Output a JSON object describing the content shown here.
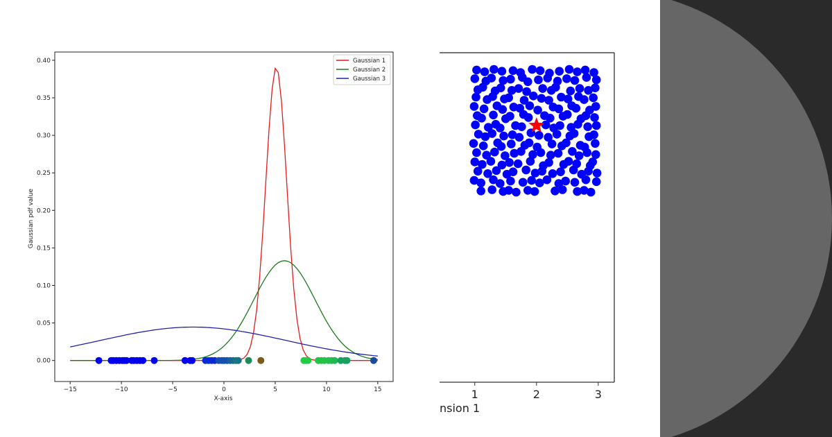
{
  "colors": {
    "background_dark": "#2a2a2a",
    "circle_gray": "#666666"
  },
  "chart_data": [
    {
      "type": "line",
      "xlabel": "X-axis",
      "ylabel": "Gaussian pdf value",
      "xlim": [
        -16.5,
        16.5
      ],
      "ylim": [
        -0.028,
        0.411
      ],
      "x_ticks": [
        "−15",
        "−10",
        "−5",
        "0",
        "5",
        "10",
        "15"
      ],
      "x_tick_values": [
        -15,
        -10,
        -5,
        0,
        5,
        10,
        15
      ],
      "y_ticks": [
        "0.00",
        "0.05",
        "0.10",
        "0.15",
        "0.20",
        "0.25",
        "0.30",
        "0.35",
        "0.40"
      ],
      "y_tick_values": [
        0,
        0.05,
        0.1,
        0.15,
        0.2,
        0.25,
        0.3,
        0.35,
        0.4
      ],
      "x_domain": [
        -15,
        15
      ],
      "samples": 100,
      "legend_position": "top-right",
      "grid": false,
      "series": [
        {
          "name": "Gaussian 1",
          "color": "#e41a1c",
          "mean": 5.1,
          "std": 1.02
        },
        {
          "name": "Gaussian 2",
          "color": "#1a7a1a",
          "mean": 5.9,
          "std": 3.0
        },
        {
          "name": "Gaussian 3",
          "color": "#2020b0",
          "mean": -3.0,
          "std": 8.96
        }
      ],
      "points": [
        {
          "x": -12.2,
          "color": "#0000ee"
        },
        {
          "x": -11.0,
          "color": "#0000ee"
        },
        {
          "x": -10.8,
          "color": "#0000ee"
        },
        {
          "x": -10.5,
          "color": "#0000ee"
        },
        {
          "x": -10.2,
          "color": "#0000ee"
        },
        {
          "x": -9.9,
          "color": "#0000ee"
        },
        {
          "x": -9.7,
          "color": "#0000ee"
        },
        {
          "x": -9.5,
          "color": "#0000ee"
        },
        {
          "x": -9.0,
          "color": "#0000ee"
        },
        {
          "x": -8.8,
          "color": "#0000ee"
        },
        {
          "x": -8.5,
          "color": "#0000ee"
        },
        {
          "x": -8.2,
          "color": "#0000ee"
        },
        {
          "x": -7.9,
          "color": "#0000ee"
        },
        {
          "x": -6.8,
          "color": "#0000ee"
        },
        {
          "x": -3.8,
          "color": "#0000ee"
        },
        {
          "x": -3.3,
          "color": "#0000ee"
        },
        {
          "x": -3.1,
          "color": "#0000ee"
        },
        {
          "x": -1.8,
          "color": "#0a2ad8"
        },
        {
          "x": -1.5,
          "color": "#0a2ad8"
        },
        {
          "x": -1.2,
          "color": "#0a2ad8"
        },
        {
          "x": -0.9,
          "color": "#0a2ad8"
        },
        {
          "x": -0.5,
          "color": "#1450b0"
        },
        {
          "x": -0.2,
          "color": "#1450b0"
        },
        {
          "x": 0.0,
          "color": "#1450b0"
        },
        {
          "x": 0.3,
          "color": "#1450b0"
        },
        {
          "x": 0.6,
          "color": "#1460a0"
        },
        {
          "x": 0.9,
          "color": "#156a90"
        },
        {
          "x": 1.2,
          "color": "#167585"
        },
        {
          "x": 1.4,
          "color": "#167585"
        },
        {
          "x": 2.4,
          "color": "#1e8c5a"
        },
        {
          "x": 3.6,
          "color": "#7b5a1e"
        },
        {
          "x": 7.8,
          "color": "#22cc44"
        },
        {
          "x": 8.0,
          "color": "#22cc44"
        },
        {
          "x": 8.2,
          "color": "#22cc44"
        },
        {
          "x": 9.2,
          "color": "#22c448"
        },
        {
          "x": 9.5,
          "color": "#22c448"
        },
        {
          "x": 9.8,
          "color": "#22c448"
        },
        {
          "x": 10.2,
          "color": "#22c04c"
        },
        {
          "x": 10.5,
          "color": "#22c04c"
        },
        {
          "x": 10.8,
          "color": "#22b850"
        },
        {
          "x": 11.4,
          "color": "#18a060"
        },
        {
          "x": 11.8,
          "color": "#18a060"
        },
        {
          "x": 12.0,
          "color": "#18a060"
        },
        {
          "x": 14.6,
          "color": "#1a4a9a"
        }
      ]
    },
    {
      "type": "scatter",
      "xlabel_visible": "nsion 1",
      "xlim": [
        0.43,
        3.26
      ],
      "ylim": [
        -2.1,
        3.24
      ],
      "x_ticks": [
        "1",
        "2",
        "3"
      ],
      "x_tick_values": [
        1,
        2,
        3
      ],
      "point_color": "#0000ff",
      "marker": {
        "label": "star",
        "color": "#ff0000",
        "x": 2.0,
        "y": 2.06
      },
      "points": [
        [
          1.03,
          2.96
        ],
        [
          1.16,
          2.93
        ],
        [
          1.31,
          2.97
        ],
        [
          1.44,
          2.94
        ],
        [
          1.62,
          2.95
        ],
        [
          1.74,
          2.92
        ],
        [
          1.93,
          2.97
        ],
        [
          2.06,
          2.95
        ],
        [
          2.21,
          2.91
        ],
        [
          2.37,
          2.94
        ],
        [
          2.53,
          2.97
        ],
        [
          2.66,
          2.93
        ],
        [
          2.79,
          2.96
        ],
        [
          2.93,
          2.92
        ],
        [
          1.0,
          2.82
        ],
        [
          1.18,
          2.78
        ],
        [
          1.27,
          2.83
        ],
        [
          1.46,
          2.79
        ],
        [
          1.58,
          2.81
        ],
        [
          1.77,
          2.84
        ],
        [
          1.86,
          2.77
        ],
        [
          2.03,
          2.8
        ],
        [
          2.18,
          2.83
        ],
        [
          2.34,
          2.78
        ],
        [
          2.49,
          2.82
        ],
        [
          2.62,
          2.79
        ],
        [
          2.81,
          2.84
        ],
        [
          2.97,
          2.8
        ],
        [
          1.05,
          2.64
        ],
        [
          1.13,
          2.68
        ],
        [
          1.33,
          2.62
        ],
        [
          1.42,
          2.67
        ],
        [
          1.6,
          2.63
        ],
        [
          1.71,
          2.66
        ],
        [
          1.84,
          2.61
        ],
        [
          2.1,
          2.66
        ],
        [
          2.24,
          2.63
        ],
        [
          2.31,
          2.68
        ],
        [
          2.55,
          2.62
        ],
        [
          2.7,
          2.66
        ],
        [
          2.84,
          2.63
        ],
        [
          2.95,
          2.67
        ],
        [
          1.02,
          2.52
        ],
        [
          1.2,
          2.48
        ],
        [
          1.29,
          2.53
        ],
        [
          1.48,
          2.49
        ],
        [
          1.55,
          2.51
        ],
        [
          1.8,
          2.47
        ],
        [
          1.95,
          2.54
        ],
        [
          2.08,
          2.5
        ],
        [
          2.2,
          2.47
        ],
        [
          2.4,
          2.52
        ],
        [
          2.51,
          2.49
        ],
        [
          2.68,
          2.53
        ],
        [
          2.77,
          2.48
        ],
        [
          2.92,
          2.51
        ],
        [
          0.99,
          2.37
        ],
        [
          1.15,
          2.33
        ],
        [
          1.36,
          2.38
        ],
        [
          1.45,
          2.32
        ],
        [
          1.63,
          2.36
        ],
        [
          1.73,
          2.34
        ],
        [
          1.89,
          2.38
        ],
        [
          2.02,
          2.31
        ],
        [
          2.27,
          2.36
        ],
        [
          2.36,
          2.33
        ],
        [
          2.57,
          2.38
        ],
        [
          2.64,
          2.34
        ],
        [
          2.86,
          2.31
        ],
        [
          2.96,
          2.37
        ],
        [
          1.04,
          2.22
        ],
        [
          1.11,
          2.18
        ],
        [
          1.3,
          2.23
        ],
        [
          1.5,
          2.17
        ],
        [
          1.57,
          2.21
        ],
        [
          1.79,
          2.24
        ],
        [
          1.87,
          2.19
        ],
        [
          2.13,
          2.22
        ],
        [
          2.22,
          2.18
        ],
        [
          2.43,
          2.21
        ],
        [
          2.5,
          2.24
        ],
        [
          2.72,
          2.17
        ],
        [
          2.8,
          2.22
        ],
        [
          2.94,
          2.19
        ],
        [
          1.01,
          2.07
        ],
        [
          1.22,
          2.03
        ],
        [
          1.34,
          2.08
        ],
        [
          1.41,
          2.02
        ],
        [
          1.66,
          2.06
        ],
        [
          1.76,
          2.04
        ],
        [
          2.15,
          2.07
        ],
        [
          2.28,
          2.02
        ],
        [
          2.38,
          2.06
        ],
        [
          2.56,
          2.03
        ],
        [
          2.67,
          2.08
        ],
        [
          2.83,
          2.04
        ],
        [
          2.97,
          2.06
        ],
        [
          1.06,
          1.92
        ],
        [
          1.17,
          1.88
        ],
        [
          1.28,
          1.93
        ],
        [
          1.47,
          1.89
        ],
        [
          1.61,
          1.91
        ],
        [
          1.72,
          1.87
        ],
        [
          1.91,
          1.94
        ],
        [
          2.04,
          1.9
        ],
        [
          2.19,
          1.87
        ],
        [
          2.33,
          1.92
        ],
        [
          2.54,
          1.89
        ],
        [
          2.61,
          1.93
        ],
        [
          2.85,
          1.88
        ],
        [
          2.93,
          1.91
        ],
        [
          0.98,
          1.77
        ],
        [
          1.14,
          1.73
        ],
        [
          1.37,
          1.78
        ],
        [
          1.43,
          1.72
        ],
        [
          1.59,
          1.76
        ],
        [
          1.81,
          1.74
        ],
        [
          1.88,
          1.78
        ],
        [
          2.01,
          1.71
        ],
        [
          2.25,
          1.76
        ],
        [
          2.41,
          1.73
        ],
        [
          2.48,
          1.78
        ],
        [
          2.71,
          1.74
        ],
        [
          2.78,
          1.71
        ],
        [
          2.95,
          1.77
        ],
        [
          1.03,
          1.62
        ],
        [
          1.19,
          1.58
        ],
        [
          1.32,
          1.63
        ],
        [
          1.49,
          1.57
        ],
        [
          1.64,
          1.61
        ],
        [
          1.75,
          1.64
        ],
        [
          1.94,
          1.59
        ],
        [
          2.07,
          1.62
        ],
        [
          2.23,
          1.58
        ],
        [
          2.35,
          1.61
        ],
        [
          2.58,
          1.64
        ],
        [
          2.69,
          1.57
        ],
        [
          2.82,
          1.62
        ],
        [
          2.96,
          1.59
        ],
        [
          1.0,
          1.47
        ],
        [
          1.12,
          1.43
        ],
        [
          1.26,
          1.48
        ],
        [
          1.44,
          1.42
        ],
        [
          1.56,
          1.46
        ],
        [
          1.7,
          1.44
        ],
        [
          1.9,
          1.48
        ],
        [
          2.11,
          1.41
        ],
        [
          2.2,
          1.46
        ],
        [
          2.44,
          1.43
        ],
        [
          2.52,
          1.48
        ],
        [
          2.65,
          1.44
        ],
        [
          2.87,
          1.41
        ],
        [
          2.91,
          1.47
        ],
        [
          1.05,
          1.32
        ],
        [
          1.21,
          1.28
        ],
        [
          1.35,
          1.33
        ],
        [
          1.52,
          1.27
        ],
        [
          1.62,
          1.31
        ],
        [
          1.83,
          1.34
        ],
        [
          1.98,
          1.29
        ],
        [
          2.09,
          1.32
        ],
        [
          2.26,
          1.28
        ],
        [
          2.39,
          1.31
        ],
        [
          2.6,
          1.34
        ],
        [
          2.73,
          1.27
        ],
        [
          2.84,
          1.32
        ],
        [
          2.98,
          1.29
        ],
        [
          0.99,
          1.17
        ],
        [
          1.1,
          1.13
        ],
        [
          1.3,
          1.18
        ],
        [
          1.41,
          1.12
        ],
        [
          1.58,
          1.16
        ],
        [
          1.78,
          1.14
        ],
        [
          1.92,
          1.17
        ],
        [
          2.05,
          1.13
        ],
        [
          2.17,
          1.18
        ],
        [
          2.36,
          1.12
        ],
        [
          2.47,
          1.16
        ],
        [
          2.62,
          1.14
        ],
        [
          2.8,
          1.18
        ],
        [
          2.97,
          1.15
        ],
        [
          1.1,
          1.0
        ],
        [
          1.28,
          1.02
        ],
        [
          1.46,
          0.99
        ],
        [
          1.55,
          1.01
        ],
        [
          1.67,
          0.98
        ],
        [
          1.86,
          1.01
        ],
        [
          1.97,
          0.99
        ],
        [
          2.3,
          1.0
        ],
        [
          2.42,
          1.02
        ],
        [
          2.66,
          0.99
        ],
        [
          2.77,
          1.01
        ],
        [
          2.88,
          0.98
        ]
      ]
    }
  ]
}
